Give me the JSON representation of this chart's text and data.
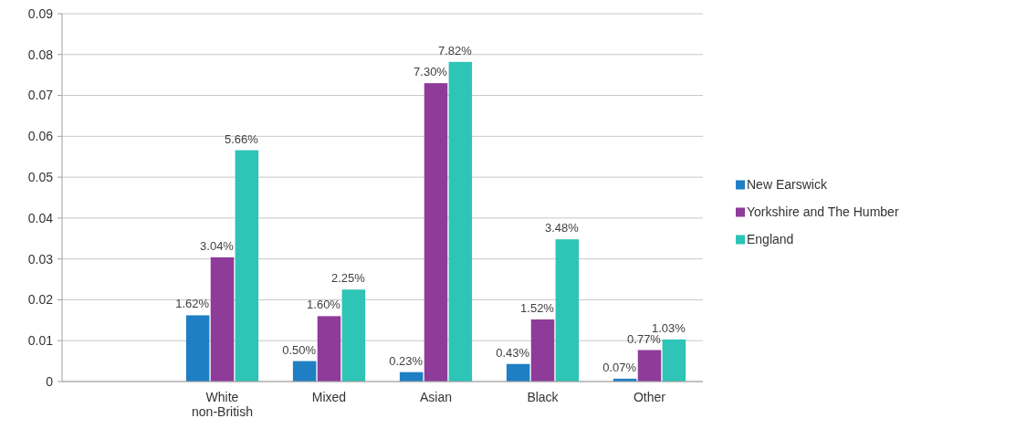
{
  "chart_data": {
    "type": "bar",
    "categories": [
      null,
      "White non-British",
      "Mixed",
      "Asian",
      "Black",
      "Other"
    ],
    "series": [
      {
        "name": "New Earswick",
        "color": "#1f7fc4",
        "values": [
          null,
          0.0162,
          0.005,
          0.0023,
          0.0043,
          0.0007
        ],
        "value_labels": [
          null,
          "1.62%",
          "0.50%",
          "0.23%",
          "0.43%",
          "0.07%"
        ]
      },
      {
        "name": "Yorkshire and The Humber",
        "color": "#8e3b9a",
        "values": [
          null,
          0.0304,
          0.016,
          0.073,
          0.0152,
          0.0077
        ],
        "value_labels": [
          null,
          "3.04%",
          "1.60%",
          "7.30%",
          "1.52%",
          "0.77%"
        ]
      },
      {
        "name": "England",
        "color": "#2ec4b6",
        "values": [
          null,
          0.0566,
          0.0225,
          0.0782,
          0.0348,
          0.0103
        ],
        "value_labels": [
          null,
          "5.66%",
          "2.25%",
          "7.82%",
          "3.48%",
          "1.03%"
        ]
      }
    ],
    "ylim": [
      0,
      0.09
    ],
    "yticks": [
      0,
      0.01,
      0.02,
      0.03,
      0.04,
      0.05,
      0.06,
      0.07,
      0.08,
      0.09
    ],
    "grid": "y",
    "legend": "right"
  }
}
